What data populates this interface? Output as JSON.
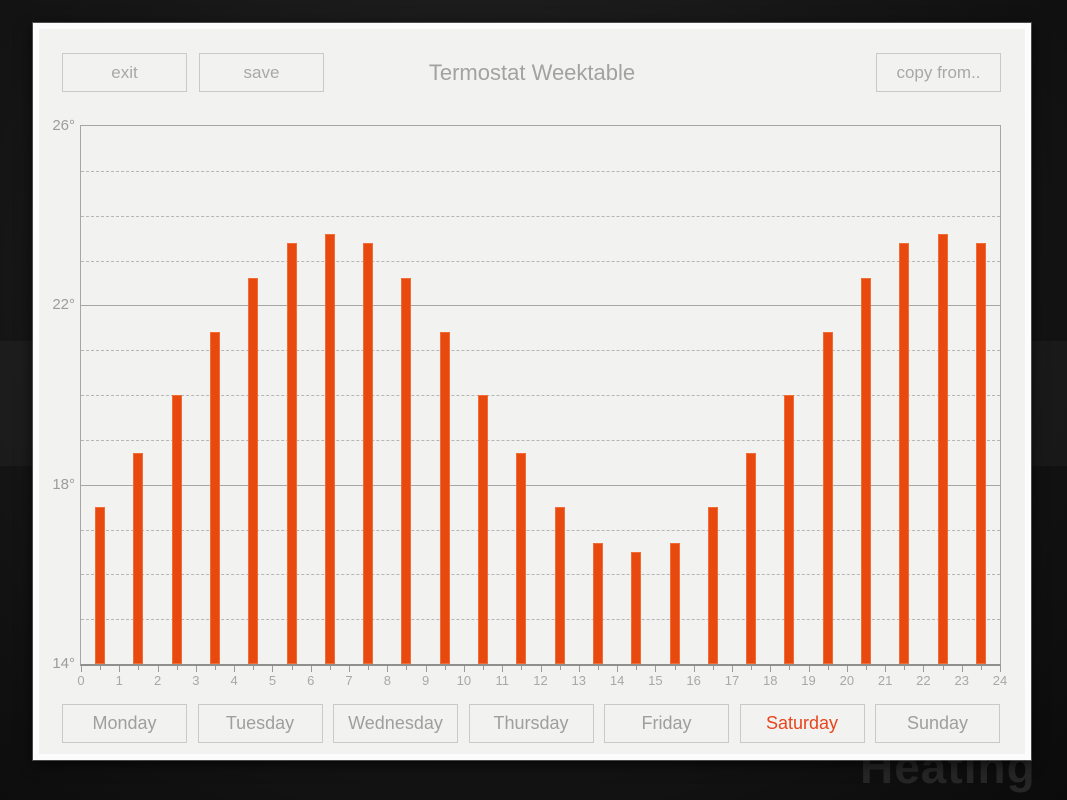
{
  "window": {
    "title": "Termostat Weektable"
  },
  "toolbar": {
    "exit_label": "exit",
    "save_label": "save",
    "copy_from_label": "copy from.."
  },
  "watermark_text": "Heating",
  "days": {
    "items": [
      "Monday",
      "Tuesday",
      "Wednesday",
      "Thursday",
      "Friday",
      "Saturday",
      "Sunday"
    ],
    "selected": "Saturday"
  },
  "colors": {
    "accent": "#e8490f",
    "selected_day_text": "#e8451c",
    "panel": "#f2f2f1"
  },
  "chart_data": {
    "type": "bar",
    "title": "Termostat Weektable",
    "categories": [
      "0",
      "1",
      "2",
      "3",
      "4",
      "5",
      "6",
      "7",
      "8",
      "9",
      "10",
      "11",
      "12",
      "13",
      "14",
      "15",
      "16",
      "17",
      "18",
      "19",
      "20",
      "21",
      "22",
      "23"
    ],
    "values": [
      17.5,
      18.7,
      20.0,
      21.4,
      22.6,
      23.4,
      23.6,
      23.4,
      22.6,
      21.4,
      20.0,
      18.7,
      17.5,
      16.7,
      16.5,
      16.7,
      17.5,
      18.7,
      20.0,
      21.4,
      22.6,
      23.4,
      23.6,
      23.4
    ],
    "ylim": [
      14,
      26
    ],
    "ytick_values": [
      26,
      22,
      18,
      14
    ],
    "ytick_labels": [
      "26°",
      "22°",
      "18°",
      "14°"
    ],
    "xtick_labels": [
      "0",
      "1",
      "2",
      "3",
      "4",
      "5",
      "6",
      "7",
      "8",
      "9",
      "10",
      "11",
      "12",
      "13",
      "14",
      "15",
      "16",
      "17",
      "18",
      "19",
      "20",
      "21",
      "22",
      "23",
      "24"
    ],
    "grid": {
      "major_step_deg": 4,
      "major_style": "solid",
      "minor_step_deg": 1,
      "minor_style": "dashed"
    },
    "bar_color": "#e8490f",
    "legend": null,
    "xlabel": "",
    "ylabel": ""
  }
}
